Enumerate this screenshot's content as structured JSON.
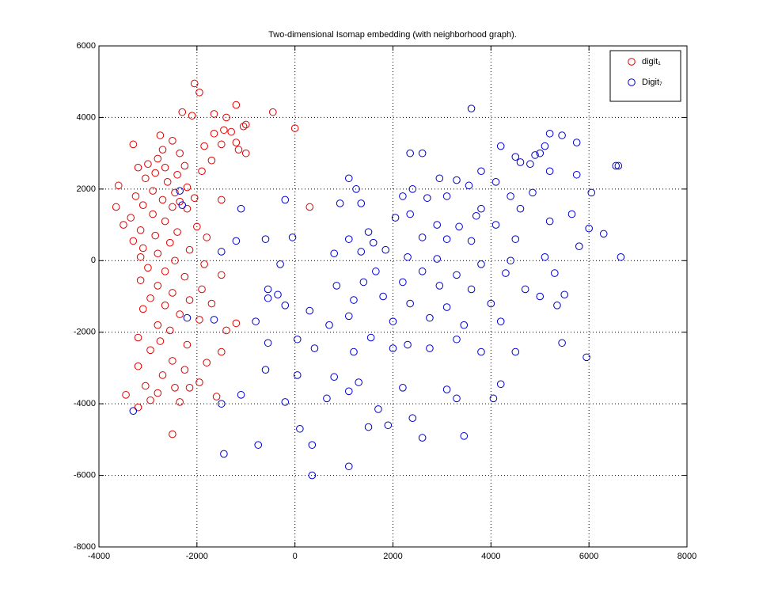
{
  "chart_data": {
    "type": "scatter",
    "title": "Two-dimensional Isomap embedding (with neighborhood graph).",
    "xlim": [
      -4000,
      8000
    ],
    "xticks": [
      -4000,
      -2000,
      0,
      2000,
      4000,
      6000,
      8000
    ],
    "ylim": [
      -8000,
      6000
    ],
    "yticks": [
      -8000,
      -6000,
      -4000,
      -2000,
      0,
      2000,
      4000,
      6000
    ],
    "grid": true,
    "legend": "northeast",
    "series": [
      {
        "name": "digit₁",
        "color": "#e00000",
        "x": [
          -2050,
          -1950,
          -1200,
          -2300,
          -450,
          -1650,
          -2100,
          -1400,
          -1000,
          -1050,
          -1450,
          -1300,
          -1650,
          -2750,
          -2500,
          -3300,
          -1200,
          -1500,
          -1850,
          -2700,
          -1150,
          -1000,
          -2350,
          -2800,
          -1700,
          -3000,
          -2650,
          -2250,
          -3200,
          -1900,
          -2850,
          -2400,
          -3050,
          -2600,
          -3600,
          -2200,
          -2900,
          -2450,
          -3250,
          -2050,
          -2700,
          -2350,
          -1500,
          -3100,
          -2500,
          -3650,
          -2200,
          -2900,
          -3350,
          -2650,
          -3500,
          -2000,
          -3150,
          -2400,
          -2850,
          -1800,
          -3300,
          -2550,
          -3100,
          -2150,
          -2800,
          -3150,
          -2450,
          -1850,
          -3000,
          -2650,
          -1500,
          -2250,
          -3150,
          -2800,
          -1900,
          -2500,
          -2950,
          -2150,
          -1700,
          -2650,
          -3100,
          -2350,
          -1950,
          -2800,
          -2550,
          -1200,
          -3200,
          -2750,
          -2200,
          -1500,
          -2950,
          -2500,
          -1800,
          -3200,
          -2250,
          -2700,
          -1950,
          -3050,
          -2450,
          -3450,
          -2800,
          -1600,
          -2950,
          -3200,
          -2500,
          300,
          0,
          -1400,
          -2150,
          -2350
        ],
        "y": [
          4950,
          4700,
          4350,
          4150,
          4150,
          4100,
          4050,
          4000,
          3800,
          3750,
          3650,
          3600,
          3550,
          3500,
          3350,
          3250,
          3300,
          3250,
          3200,
          3100,
          3100,
          3000,
          3000,
          2850,
          2800,
          2700,
          2600,
          2650,
          2600,
          2500,
          2450,
          2400,
          2300,
          2200,
          2100,
          2050,
          1950,
          1900,
          1800,
          1750,
          1700,
          1650,
          1700,
          1550,
          1500,
          1500,
          1450,
          1300,
          1200,
          1100,
          1000,
          950,
          850,
          800,
          700,
          650,
          550,
          500,
          350,
          300,
          200,
          100,
          0,
          -100,
          -200,
          -300,
          -400,
          -450,
          -550,
          -700,
          -800,
          -900,
          -1050,
          -1100,
          -1200,
          -1250,
          -1350,
          -1500,
          -1650,
          -1800,
          -1950,
          -1750,
          -2150,
          -2250,
          -2350,
          -2550,
          -2500,
          -2800,
          -2850,
          -2950,
          -3050,
          -3200,
          -3400,
          -3500,
          -3550,
          -3750,
          -3700,
          -3800,
          -3900,
          -4100,
          -4850,
          1500,
          3700,
          -1950,
          -3550,
          -3950
        ]
      },
      {
        "name": "Digit₇",
        "color": "#0000cc",
        "x": [
          3600,
          5200,
          5450,
          4200,
          2350,
          2600,
          5100,
          5750,
          4900,
          5000,
          4500,
          3800,
          4600,
          4800,
          5200,
          6550,
          6600,
          5750,
          1100,
          2950,
          3300,
          3550,
          4100,
          2400,
          1250,
          4850,
          6050,
          1350,
          920,
          -200,
          -1100,
          2200,
          2700,
          3100,
          4400,
          3800,
          5650,
          4600,
          2350,
          2050,
          3700,
          5200,
          2900,
          3350,
          4100,
          6000,
          6300,
          1500,
          1100,
          1600,
          1850,
          2600,
          3100,
          3600,
          4500,
          5800,
          -600,
          -50,
          -1500,
          -1200,
          800,
          1350,
          2300,
          2900,
          3800,
          4400,
          5100,
          6650,
          -300,
          1650,
          2600,
          3300,
          4300,
          5300,
          -550,
          850,
          1400,
          2200,
          2950,
          3600,
          4700,
          5500,
          -550,
          -350,
          1200,
          1800,
          2350,
          3100,
          4000,
          5000,
          5350,
          -800,
          300,
          1100,
          2000,
          2750,
          3450,
          4200,
          -200,
          -550,
          50,
          700,
          1550,
          2300,
          3300,
          4500,
          5450,
          -600,
          400,
          1200,
          2000,
          2750,
          3800,
          5950,
          -1100,
          50,
          800,
          1300,
          2200,
          3100,
          4200,
          -1500,
          -200,
          650,
          1100,
          1700,
          2400,
          3300,
          4050,
          -3300,
          100,
          1500,
          1900,
          2600,
          3450,
          -1450,
          -750,
          350,
          1100,
          350,
          -2350,
          -2300,
          -2200,
          -1650
        ],
        "y": [
          4250,
          3550,
          3500,
          3200,
          3000,
          3000,
          3200,
          3300,
          2950,
          3000,
          2900,
          2500,
          2750,
          2700,
          2500,
          2650,
          2650,
          2400,
          2300,
          2300,
          2250,
          2100,
          2200,
          2000,
          2000,
          1900,
          1900,
          1600,
          1600,
          1700,
          1450,
          1800,
          1750,
          1800,
          1800,
          1450,
          1300,
          1450,
          1300,
          1200,
          1250,
          1100,
          1000,
          950,
          1000,
          900,
          750,
          800,
          600,
          500,
          300,
          650,
          600,
          550,
          600,
          400,
          600,
          650,
          250,
          550,
          200,
          250,
          100,
          50,
          -100,
          0,
          100,
          100,
          -100,
          -300,
          -300,
          -400,
          -350,
          -350,
          -800,
          -700,
          -600,
          -600,
          -700,
          -800,
          -800,
          -950,
          -1050,
          -950,
          -1100,
          -1000,
          -1200,
          -1300,
          -1200,
          -1000,
          -1250,
          -1700,
          -1400,
          -1550,
          -1700,
          -1600,
          -1800,
          -1700,
          -1250,
          -2300,
          -2200,
          -1800,
          -2150,
          -2350,
          -2200,
          -2550,
          -2300,
          -3050,
          -2450,
          -2550,
          -2450,
          -2450,
          -2550,
          -2700,
          -3750,
          -3200,
          -3250,
          -3400,
          -3550,
          -3600,
          -3450,
          -4000,
          -3950,
          -3850,
          -3650,
          -4150,
          -4400,
          -3850,
          -3850,
          -4200,
          -4700,
          -4650,
          -4600,
          -4950,
          -4900,
          -5400,
          -5150,
          -5150,
          -5750,
          -6000,
          1950,
          1550,
          -1600,
          -1650
        ]
      }
    ]
  }
}
